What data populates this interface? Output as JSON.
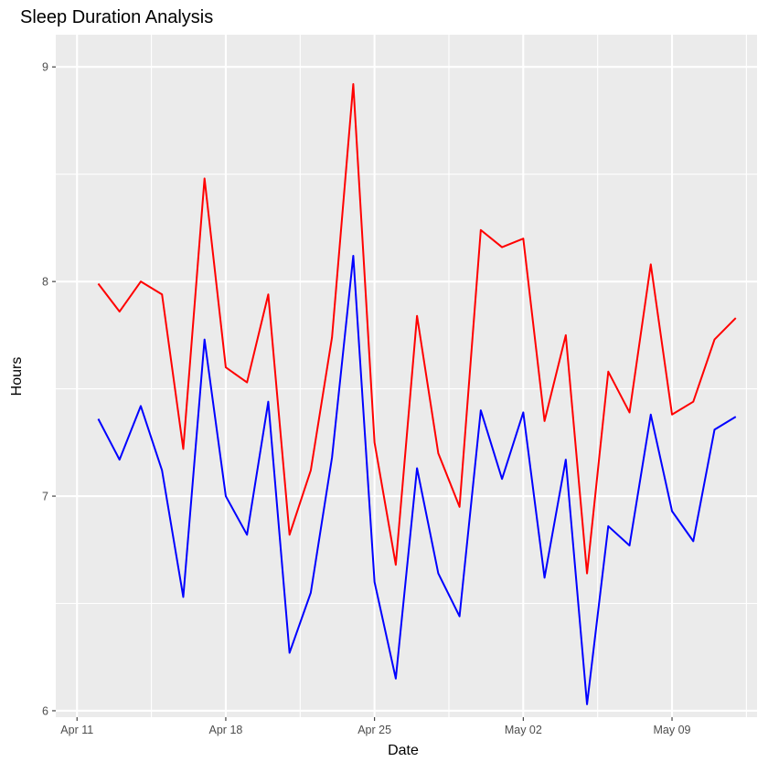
{
  "chart_data": {
    "type": "line",
    "title": "Sleep Duration Analysis",
    "xlabel": "Date",
    "ylabel": "Hours",
    "x_type": "date",
    "xlim": [
      "2024-04-10",
      "2024-05-13"
    ],
    "ylim": [
      5.97,
      9.15
    ],
    "x_ticks": [
      {
        "date": "2024-04-11",
        "label": "Apr 11"
      },
      {
        "date": "2024-04-18",
        "label": "Apr 18"
      },
      {
        "date": "2024-04-25",
        "label": "Apr 25"
      },
      {
        "date": "2024-05-02",
        "label": "May 02"
      },
      {
        "date": "2024-05-09",
        "label": "May 09"
      }
    ],
    "x_minor_ticks": [
      "2024-04-14T12:00",
      "2024-04-21T12:00",
      "2024-04-28T12:00",
      "2024-05-05T12:00",
      "2024-05-12T12:00"
    ],
    "y_ticks": [
      6,
      7,
      8,
      9
    ],
    "y_minor_ticks": [
      6.5,
      7.5,
      8.5
    ],
    "grid": true,
    "legend": "none",
    "x": [
      "2024-04-12",
      "2024-04-13",
      "2024-04-14",
      "2024-04-15",
      "2024-04-16",
      "2024-04-17",
      "2024-04-18",
      "2024-04-19",
      "2024-04-20",
      "2024-04-21",
      "2024-04-22",
      "2024-04-23",
      "2024-04-24",
      "2024-04-25",
      "2024-04-26",
      "2024-04-27",
      "2024-04-28",
      "2024-04-29",
      "2024-04-30",
      "2024-05-01",
      "2024-05-02",
      "2024-05-03",
      "2024-05-04",
      "2024-05-05",
      "2024-05-06",
      "2024-05-07",
      "2024-05-08",
      "2024-05-09",
      "2024-05-10",
      "2024-05-11",
      "2024-05-12"
    ],
    "series": [
      {
        "color": "#ff0000",
        "values": [
          7.99,
          7.86,
          8.0,
          7.94,
          7.22,
          8.48,
          7.6,
          7.53,
          7.94,
          6.82,
          7.12,
          7.74,
          8.92,
          7.25,
          6.68,
          7.84,
          7.2,
          6.95,
          8.24,
          8.16,
          8.2,
          7.35,
          7.75,
          6.64,
          7.58,
          7.39,
          8.08,
          7.38,
          7.44,
          7.73,
          7.83
        ]
      },
      {
        "color": "#0000ff",
        "values": [
          7.36,
          7.17,
          7.42,
          7.12,
          6.53,
          7.73,
          7.0,
          6.82,
          7.44,
          6.27,
          6.55,
          7.18,
          8.12,
          6.6,
          6.15,
          7.13,
          6.64,
          6.44,
          7.4,
          7.08,
          7.39,
          6.62,
          7.17,
          6.03,
          6.86,
          6.77,
          7.38,
          6.93,
          6.79,
          7.31,
          7.37
        ]
      }
    ]
  }
}
